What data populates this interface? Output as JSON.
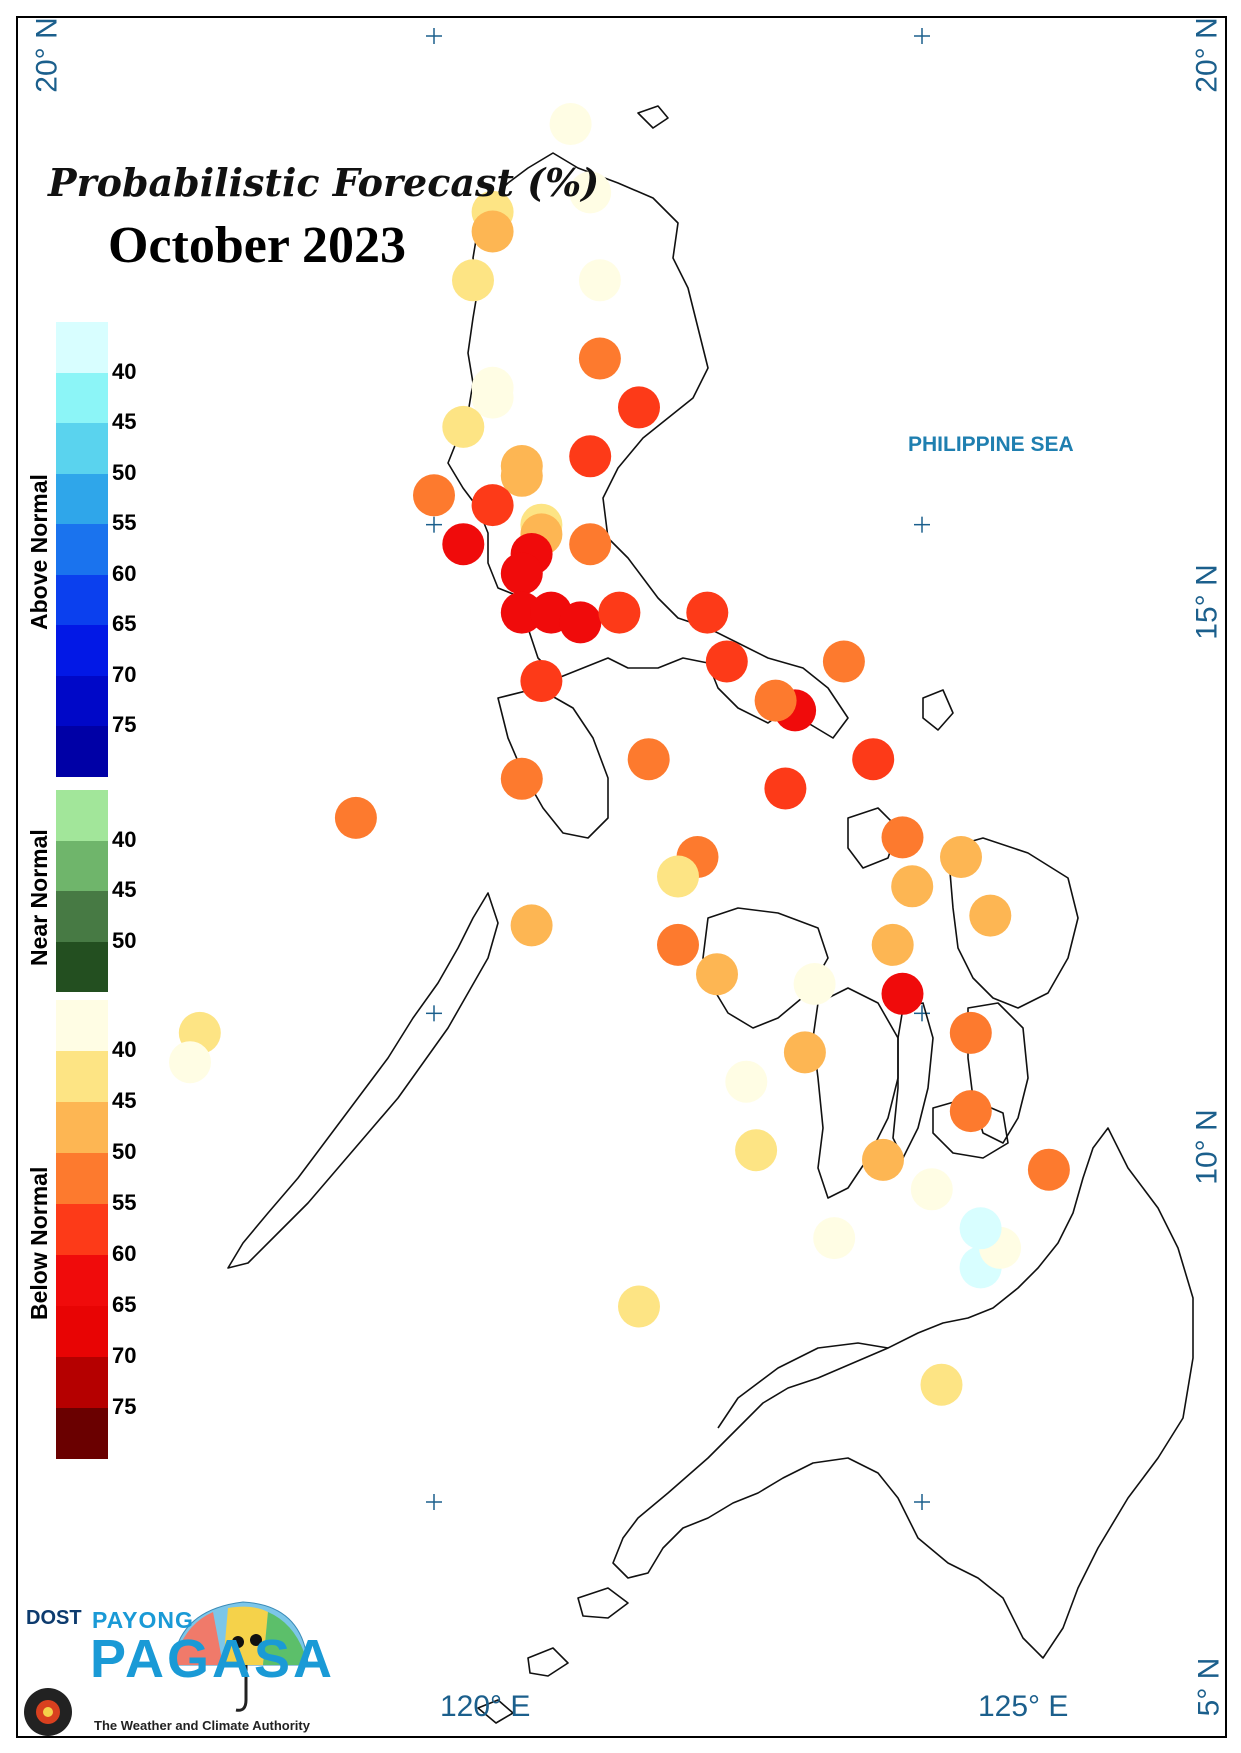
{
  "title": "Probabilistic Forecast (%)",
  "subtitle": "October 2023",
  "sea_label": "PHILIPPINE SEA",
  "latitude_labels": {
    "lat20": "20° N",
    "lat15": "15° N",
    "lat10": "10° N",
    "lat5": "5° N"
  },
  "longitude_labels": {
    "lon120": "120° E",
    "lon125": "125° E"
  },
  "legend": {
    "above_normal": {
      "title": "Above Normal",
      "ticks": [
        "40",
        "45",
        "50",
        "55",
        "60",
        "65",
        "70",
        "75"
      ],
      "colors": [
        "#d8feff",
        "#8cf5f7",
        "#5ad3ee",
        "#2fa6ea",
        "#1a73ee",
        "#0b40ee",
        "#0218e6",
        "#0008c8",
        "#0000a6"
      ]
    },
    "near_normal": {
      "title": "Near Normal",
      "ticks": [
        "40",
        "45",
        "50"
      ],
      "colors": [
        "#a2e69a",
        "#6fb56b",
        "#477a44",
        "#234f20"
      ]
    },
    "below_normal": {
      "title": "Below Normal",
      "ticks": [
        "40",
        "45",
        "50",
        "55",
        "60",
        "65",
        "70",
        "75"
      ],
      "colors": [
        "#fffde4",
        "#fde484",
        "#fdb653",
        "#fd7a2e",
        "#fd3a18",
        "#f00b0b",
        "#e80404",
        "#b50000",
        "#6a0000"
      ]
    }
  },
  "logo": {
    "agency": "DOST",
    "brand_top": "PAYONG",
    "brand_main": "PAGASA",
    "tagline": "The Weather and Climate Authority"
  },
  "chart_data": {
    "type": "scatter",
    "x_axis": "longitude",
    "y_axis": "latitude",
    "xlim": [
      115.9,
      128.2
    ],
    "ylim": [
      4.8,
      20.2
    ],
    "category_colors": {
      "BN40": "#fffde4",
      "BN45": "#fde484",
      "BN50": "#fdb653",
      "BN55": "#fd7a2e",
      "BN60": "#fd3a18",
      "BN65": "#f00b0b",
      "AN40": "#d8feff"
    },
    "stations": [
      {
        "lon": 121.4,
        "lat": 19.1,
        "c": "BN40"
      },
      {
        "lon": 121.6,
        "lat": 18.4,
        "c": "BN40"
      },
      {
        "lon": 120.6,
        "lat": 18.2,
        "c": "BN45"
      },
      {
        "lon": 120.6,
        "lat": 18.0,
        "c": "BN50"
      },
      {
        "lon": 120.4,
        "lat": 17.5,
        "c": "BN45"
      },
      {
        "lon": 121.7,
        "lat": 17.5,
        "c": "BN40"
      },
      {
        "lon": 121.7,
        "lat": 16.7,
        "c": "BN55"
      },
      {
        "lon": 120.6,
        "lat": 16.4,
        "c": "BN40"
      },
      {
        "lon": 120.6,
        "lat": 16.3,
        "c": "BN40"
      },
      {
        "lon": 122.1,
        "lat": 16.2,
        "c": "BN60"
      },
      {
        "lon": 120.3,
        "lat": 16.0,
        "c": "BN45"
      },
      {
        "lon": 121.6,
        "lat": 15.7,
        "c": "BN60"
      },
      {
        "lon": 120.9,
        "lat": 15.6,
        "c": "BN50"
      },
      {
        "lon": 120.9,
        "lat": 15.5,
        "c": "BN50"
      },
      {
        "lon": 120.0,
        "lat": 15.3,
        "c": "BN55"
      },
      {
        "lon": 120.6,
        "lat": 15.2,
        "c": "BN60"
      },
      {
        "lon": 121.1,
        "lat": 15.0,
        "c": "BN45"
      },
      {
        "lon": 121.1,
        "lat": 14.9,
        "c": "BN50"
      },
      {
        "lon": 120.3,
        "lat": 14.8,
        "c": "BN65"
      },
      {
        "lon": 121.6,
        "lat": 14.8,
        "c": "BN55"
      },
      {
        "lon": 121.0,
        "lat": 14.7,
        "c": "BN65"
      },
      {
        "lon": 120.9,
        "lat": 14.5,
        "c": "BN65"
      },
      {
        "lon": 120.9,
        "lat": 14.1,
        "c": "BN65"
      },
      {
        "lon": 121.2,
        "lat": 14.1,
        "c": "BN65"
      },
      {
        "lon": 121.5,
        "lat": 14.0,
        "c": "BN65"
      },
      {
        "lon": 121.9,
        "lat": 14.1,
        "c": "BN60"
      },
      {
        "lon": 122.8,
        "lat": 14.1,
        "c": "BN60"
      },
      {
        "lon": 123.0,
        "lat": 13.6,
        "c": "BN60"
      },
      {
        "lon": 124.2,
        "lat": 13.6,
        "c": "BN55"
      },
      {
        "lon": 121.1,
        "lat": 13.4,
        "c": "BN60"
      },
      {
        "lon": 123.7,
        "lat": 13.1,
        "c": "BN65"
      },
      {
        "lon": 123.5,
        "lat": 13.2,
        "c": "BN55"
      },
      {
        "lon": 122.2,
        "lat": 12.6,
        "c": "BN55"
      },
      {
        "lon": 120.9,
        "lat": 12.4,
        "c": "BN55"
      },
      {
        "lon": 123.6,
        "lat": 12.3,
        "c": "BN60"
      },
      {
        "lon": 124.5,
        "lat": 12.6,
        "c": "BN60"
      },
      {
        "lon": 119.2,
        "lat": 12.0,
        "c": "BN55"
      },
      {
        "lon": 124.8,
        "lat": 11.8,
        "c": "BN55"
      },
      {
        "lon": 125.4,
        "lat": 11.6,
        "c": "BN50"
      },
      {
        "lon": 122.7,
        "lat": 11.6,
        "c": "BN55"
      },
      {
        "lon": 122.5,
        "lat": 11.4,
        "c": "BN45"
      },
      {
        "lon": 124.9,
        "lat": 11.3,
        "c": "BN50"
      },
      {
        "lon": 125.7,
        "lat": 11.0,
        "c": "BN50"
      },
      {
        "lon": 121.0,
        "lat": 10.9,
        "c": "BN50"
      },
      {
        "lon": 122.5,
        "lat": 10.7,
        "c": "BN55"
      },
      {
        "lon": 124.7,
        "lat": 10.7,
        "c": "BN50"
      },
      {
        "lon": 122.9,
        "lat": 10.4,
        "c": "BN50"
      },
      {
        "lon": 123.9,
        "lat": 10.3,
        "c": "BN40"
      },
      {
        "lon": 124.8,
        "lat": 10.2,
        "c": "BN65"
      },
      {
        "lon": 125.5,
        "lat": 9.8,
        "c": "BN55"
      },
      {
        "lon": 117.6,
        "lat": 9.8,
        "c": "BN45"
      },
      {
        "lon": 117.5,
        "lat": 9.5,
        "c": "BN40"
      },
      {
        "lon": 123.8,
        "lat": 9.6,
        "c": "BN50"
      },
      {
        "lon": 123.2,
        "lat": 9.3,
        "c": "BN40"
      },
      {
        "lon": 125.5,
        "lat": 9.0,
        "c": "BN55"
      },
      {
        "lon": 123.3,
        "lat": 8.6,
        "c": "BN45"
      },
      {
        "lon": 124.6,
        "lat": 8.5,
        "c": "BN50"
      },
      {
        "lon": 126.3,
        "lat": 8.4,
        "c": "BN55"
      },
      {
        "lon": 125.1,
        "lat": 8.2,
        "c": "BN40"
      },
      {
        "lon": 124.1,
        "lat": 7.7,
        "c": "BN40"
      },
      {
        "lon": 125.6,
        "lat": 7.4,
        "c": "AN40"
      },
      {
        "lon": 125.8,
        "lat": 7.6,
        "c": "BN40"
      },
      {
        "lon": 125.6,
        "lat": 7.8,
        "c": "AN40"
      },
      {
        "lon": 122.1,
        "lat": 7.0,
        "c": "BN45"
      },
      {
        "lon": 125.2,
        "lat": 6.2,
        "c": "BN45"
      }
    ]
  }
}
